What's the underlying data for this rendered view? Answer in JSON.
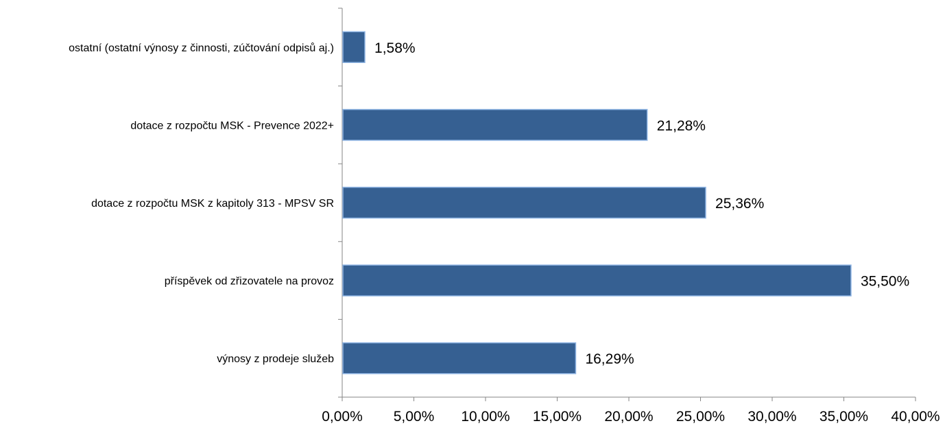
{
  "chart_data": {
    "type": "bar",
    "orientation": "horizontal",
    "categories": [
      "ostatní (ostatní výnosy z činnosti, zúčtování odpisů aj.)",
      "dotace z rozpočtu MSK - Prevence 2022+",
      "dotace z rozpočtu MSK z kapitoly 313 - MPSV SR",
      "příspěvek od zřizovatele na provoz",
      "výnosy z prodeje služeb"
    ],
    "values": [
      1.58,
      21.28,
      25.36,
      35.5,
      16.29
    ],
    "value_labels": [
      "1,58%",
      "21,28%",
      "25,36%",
      "35,50%",
      "16,29%"
    ],
    "xlim": [
      0,
      40
    ],
    "x_ticks": [
      0,
      5,
      10,
      15,
      20,
      25,
      30,
      35,
      40
    ],
    "x_tick_labels": [
      "0,00%",
      "5,00%",
      "10,00%",
      "15,00%",
      "20,00%",
      "25,00%",
      "30,00%",
      "35,00%",
      "40,00%"
    ],
    "title": "",
    "xlabel": "",
    "ylabel": "",
    "grid": false,
    "legend": "none",
    "bar_color": "#366092",
    "bar_edge_color": "#8eb4e3",
    "axis_color": "#868686"
  }
}
